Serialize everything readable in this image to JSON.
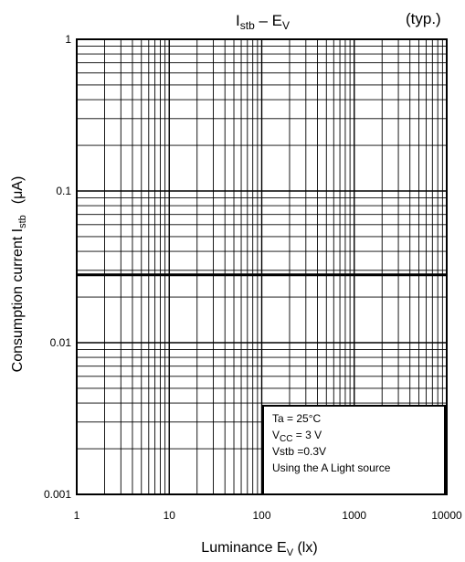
{
  "chart_data": {
    "type": "line",
    "title": {
      "main": "I",
      "main_sub": "stb",
      "dash": " – E",
      "dash_sub": "V"
    },
    "qualifier": "(typ.)",
    "xlabel": {
      "main": "Luminance E",
      "sub": "V",
      "tail": " (lx)"
    },
    "ylabel": {
      "main": "Consumption current I",
      "sub": "stb",
      "unit": "(μA)"
    },
    "x_scale": "log",
    "y_scale": "log",
    "xlim": [
      1,
      10000
    ],
    "ylim": [
      0.001,
      1
    ],
    "x_ticks": [
      {
        "value": 1,
        "label": "1"
      },
      {
        "value": 10,
        "label": "10"
      },
      {
        "value": 100,
        "label": "100"
      },
      {
        "value": 1000,
        "label": "1000"
      },
      {
        "value": 10000,
        "label": "10000"
      }
    ],
    "y_ticks": [
      {
        "value": 0.001,
        "label": "0.001"
      },
      {
        "value": 0.01,
        "label": "0.01"
      },
      {
        "value": 0.1,
        "label": "0.1"
      },
      {
        "value": 1,
        "label": "1"
      }
    ],
    "grid": true,
    "series": [
      {
        "x": [
          1,
          10000
        ],
        "y": [
          0.028,
          0.028
        ],
        "color": "#000000"
      }
    ],
    "conditions": {
      "placement": "bottom-right",
      "lines": [
        {
          "main": "Ta = 25°C"
        },
        {
          "main": "V",
          "sub": "CC",
          "tail": " = 3 V"
        },
        {
          "main": "Vstb =0.3V"
        },
        {
          "main": "Using the A Light source"
        }
      ]
    }
  }
}
